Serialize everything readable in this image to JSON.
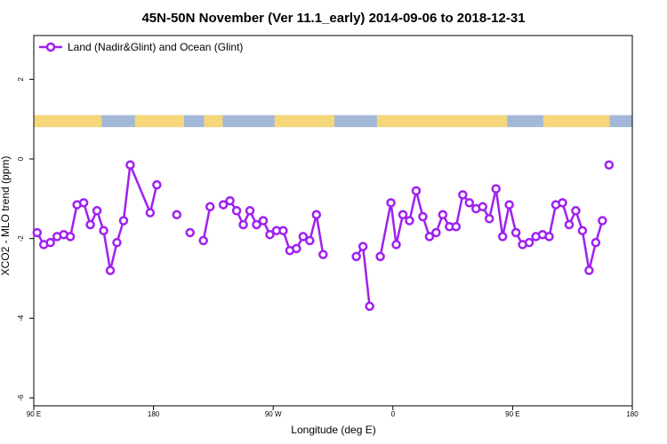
{
  "chart_data": {
    "type": "line",
    "title": "45N-50N November (Ver 11.1_early)   2014-09-06 to 2018-12-31",
    "xlabel": "Longitude (deg E)",
    "ylabel": "XCO2 - MLO trend (ppm)",
    "xlim": [
      90,
      450
    ],
    "ylim": [
      -6.2,
      3.1
    ],
    "x_ticks": [
      {
        "value": 90,
        "label": "90 E"
      },
      {
        "value": 180,
        "label": "180"
      },
      {
        "value": 270,
        "label": "90 W"
      },
      {
        "value": 360,
        "label": "0"
      },
      {
        "value": 450,
        "label": "90 E"
      },
      {
        "value": 540,
        "label": "180"
      }
    ],
    "y_ticks": [
      {
        "value": 2,
        "label": "2"
      },
      {
        "value": 0,
        "label": "0"
      },
      {
        "value": -2,
        "label": "-2"
      },
      {
        "value": -4,
        "label": "-4"
      },
      {
        "value": -6,
        "label": "-6"
      }
    ],
    "legend": {
      "position": "top-left",
      "entries": [
        "Land (Nadir&Glint) and Ocean (Glint)"
      ]
    },
    "grid": false,
    "series": [
      {
        "name": "Land (Nadir&Glint) and Ocean (Glint)",
        "color": "#a020f0",
        "points": [
          [
            92.5,
            -1.85
          ],
          [
            97.5,
            -2.15
          ],
          [
            102.5,
            -2.1
          ],
          [
            107.5,
            -1.95
          ],
          [
            112.5,
            -1.9
          ],
          [
            117.5,
            -1.95
          ],
          [
            122.5,
            -1.15
          ],
          [
            127.5,
            -1.1
          ],
          [
            132.5,
            -1.65
          ],
          [
            137.5,
            -1.3
          ],
          [
            142.5,
            -1.8
          ],
          [
            147.5,
            -2.8
          ],
          [
            152.5,
            -2.1
          ],
          [
            157.5,
            -1.55
          ],
          [
            162.5,
            -0.15
          ],
          [
            177.5,
            -1.35
          ],
          [
            182.5,
            -0.65
          ],
          null,
          [
            197.5,
            -1.4
          ],
          null,
          [
            207.5,
            -1.85
          ],
          null,
          [
            217.5,
            -2.05
          ],
          [
            222.5,
            -1.2
          ],
          null,
          [
            232.5,
            -1.15
          ],
          [
            237.5,
            -1.05
          ],
          [
            242.5,
            -1.3
          ],
          [
            247.5,
            -1.65
          ],
          [
            252.5,
            -1.3
          ],
          [
            257.5,
            -1.65
          ],
          [
            262.5,
            -1.55
          ],
          [
            267.5,
            -1.9
          ],
          [
            272.5,
            -1.8
          ],
          [
            277.5,
            -1.8
          ],
          [
            282.5,
            -2.3
          ],
          [
            287.5,
            -2.25
          ],
          [
            292.5,
            -1.95
          ],
          [
            297.5,
            -2.05
          ],
          [
            302.5,
            -1.4
          ],
          [
            307.5,
            -2.4
          ],
          null,
          [
            332.5,
            -2.45
          ],
          [
            337.5,
            -2.2
          ],
          [
            342.5,
            -3.7
          ],
          null,
          [
            350.5,
            -2.45
          ],
          [
            358.5,
            -1.1
          ],
          [
            362.5,
            -2.15
          ],
          [
            367.5,
            -1.4
          ],
          [
            372.5,
            -1.55
          ],
          [
            377.5,
            -0.8
          ],
          [
            382.5,
            -1.45
          ],
          [
            387.5,
            -1.95
          ],
          [
            392.5,
            -1.85
          ],
          [
            397.5,
            -1.4
          ],
          [
            402.5,
            -1.7
          ],
          [
            407.5,
            -1.7
          ],
          [
            412.5,
            -0.9
          ],
          [
            417.5,
            -1.1
          ],
          [
            422.5,
            -1.25
          ],
          [
            427.5,
            -1.2
          ],
          [
            432.5,
            -1.5
          ],
          [
            437.5,
            -0.75
          ],
          [
            442.5,
            -1.95
          ],
          [
            447.5,
            -1.15
          ],
          [
            452.5,
            -1.85
          ],
          [
            457.5,
            -2.15
          ],
          [
            462.5,
            -2.1
          ],
          [
            467.5,
            -1.95
          ],
          [
            472.5,
            -1.9
          ],
          [
            477.5,
            -1.95
          ],
          [
            482.5,
            -1.15
          ],
          [
            487.5,
            -1.1
          ],
          [
            492.5,
            -1.65
          ],
          [
            497.5,
            -1.3
          ],
          [
            502.5,
            -1.8
          ],
          [
            507.5,
            -2.8
          ],
          [
            512.5,
            -2.1
          ],
          [
            517.5,
            -1.55
          ],
          null,
          [
            522.5,
            -0.15
          ]
        ]
      }
    ],
    "land_ocean_strip": {
      "y_range": [
        0.8,
        1.1
      ],
      "land_color": "#f5d77a",
      "ocean_color": "#a3b8d8",
      "land_intervals": [
        [
          90,
          141
        ],
        [
          166,
          203
        ],
        [
          218,
          232
        ],
        [
          271,
          316
        ],
        [
          348,
          446
        ],
        [
          473,
          523
        ]
      ]
    }
  }
}
